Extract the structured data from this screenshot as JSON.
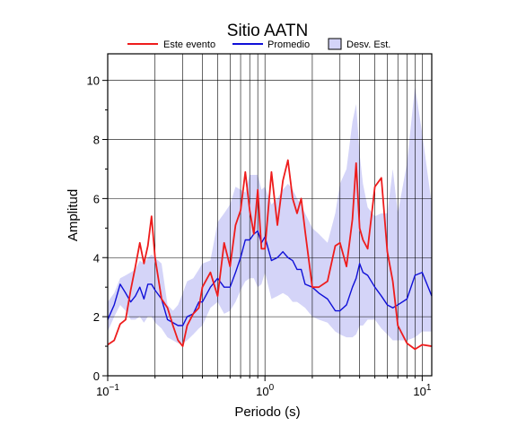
{
  "chart_data": {
    "type": "area",
    "title": "Sitio AATN",
    "xlabel": "Periodo (s)",
    "ylabel": "Amplitud",
    "x_scale": "log",
    "xlim": [
      0.1,
      11.5
    ],
    "ylim": [
      0,
      10.9
    ],
    "x_ticks": [
      0.1,
      1,
      10
    ],
    "x_tick_labels": [
      {
        "base": "10",
        "exp": "−1"
      },
      {
        "base": "10",
        "exp": "0"
      },
      {
        "base": "10",
        "exp": "1"
      }
    ],
    "y_ticks": [
      0,
      2,
      4,
      6,
      8,
      10
    ],
    "y_tick_labels": [
      "0",
      "2",
      "4",
      "6",
      "8",
      "10"
    ],
    "grid": true,
    "legend_position": "top",
    "legend": [
      {
        "label": "Este evento",
        "kind": "line",
        "color": "#ee1c1c"
      },
      {
        "label": "Promedio",
        "kind": "line",
        "color": "#1010d8"
      },
      {
        "label": "Desv. Est.",
        "kind": "box",
        "color": "#d4d4f8"
      }
    ],
    "x": [
      0.1,
      0.11,
      0.12,
      0.13,
      0.14,
      0.15,
      0.16,
      0.17,
      0.18,
      0.19,
      0.2,
      0.22,
      0.24,
      0.26,
      0.28,
      0.3,
      0.32,
      0.35,
      0.38,
      0.4,
      0.45,
      0.5,
      0.55,
      0.6,
      0.65,
      0.7,
      0.75,
      0.8,
      0.85,
      0.9,
      0.95,
      1.0,
      1.1,
      1.2,
      1.3,
      1.4,
      1.5,
      1.6,
      1.7,
      1.8,
      2.0,
      2.2,
      2.5,
      2.8,
      3.0,
      3.3,
      3.6,
      3.8,
      4.0,
      4.2,
      4.5,
      5.0,
      5.5,
      6.0,
      6.5,
      7.0,
      8.0,
      9.0,
      10.0,
      11.5
    ],
    "series": [
      {
        "name": "Este evento",
        "color": "#ee1c1c",
        "values": [
          1.05,
          1.2,
          1.75,
          1.9,
          2.9,
          3.7,
          4.5,
          3.8,
          4.4,
          5.4,
          4.0,
          2.6,
          2.3,
          1.7,
          1.2,
          1.0,
          1.7,
          2.1,
          2.3,
          3.0,
          3.5,
          2.7,
          4.5,
          3.7,
          5.1,
          5.6,
          6.9,
          5.6,
          4.8,
          6.3,
          4.3,
          4.3,
          6.9,
          5.1,
          6.6,
          7.3,
          6.0,
          5.5,
          6.0,
          4.9,
          3.0,
          3.0,
          3.2,
          4.4,
          4.5,
          3.7,
          5.3,
          7.2,
          5.0,
          4.6,
          4.3,
          6.4,
          6.7,
          4.2,
          3.2,
          1.7,
          1.1,
          0.9,
          1.05,
          1.0
        ]
      },
      {
        "name": "Promedio",
        "color": "#1010d8",
        "values": [
          1.9,
          2.4,
          3.1,
          2.8,
          2.5,
          2.7,
          3.0,
          2.6,
          3.1,
          3.1,
          2.9,
          2.6,
          1.9,
          1.8,
          1.7,
          1.7,
          2.0,
          2.1,
          2.5,
          2.5,
          3.0,
          3.3,
          3.0,
          3.0,
          3.5,
          4.0,
          4.6,
          4.6,
          4.8,
          4.9,
          4.5,
          4.7,
          3.9,
          4.0,
          4.2,
          4.0,
          3.9,
          3.6,
          3.6,
          3.1,
          3.0,
          2.8,
          2.6,
          2.2,
          2.2,
          2.4,
          3.0,
          3.3,
          3.8,
          3.5,
          3.4,
          3.0,
          2.7,
          2.4,
          2.3,
          2.4,
          2.6,
          3.4,
          3.5,
          2.7
        ]
      }
    ],
    "std_band": {
      "name": "Desv. Est.",
      "color": "#d4d4f8",
      "upper": [
        2.5,
        2.8,
        3.3,
        3.4,
        3.5,
        3.6,
        3.9,
        3.8,
        4.0,
        4.1,
        4.0,
        3.8,
        2.4,
        2.2,
        2.4,
        2.8,
        3.2,
        3.3,
        3.6,
        3.8,
        3.9,
        5.2,
        5.5,
        5.8,
        6.4,
        6.3,
        6.2,
        6.8,
        6.8,
        6.8,
        6.3,
        6.4,
        5.8,
        6.0,
        6.3,
        6.5,
        6.3,
        6.0,
        5.8,
        5.5,
        5.0,
        4.8,
        4.5,
        5.5,
        6.5,
        7.0,
        8.6,
        9.2,
        7.5,
        6.5,
        5.7,
        5.4,
        5.5,
        5.5,
        7.0,
        5.5,
        7.2,
        9.8,
        8.2,
        5.8
      ],
      "lower": [
        1.5,
        2.0,
        2.4,
        2.2,
        1.9,
        1.9,
        2.0,
        1.8,
        2.0,
        2.0,
        1.8,
        1.6,
        1.3,
        1.2,
        1.1,
        1.1,
        1.2,
        1.4,
        1.6,
        1.7,
        2.3,
        2.5,
        2.1,
        2.2,
        2.5,
        2.9,
        3.2,
        3.3,
        3.3,
        3.0,
        3.1,
        3.5,
        2.6,
        2.7,
        2.8,
        2.7,
        2.5,
        2.5,
        2.4,
        2.3,
        2.0,
        1.9,
        1.8,
        1.5,
        1.4,
        1.3,
        1.3,
        1.4,
        1.7,
        1.7,
        1.9,
        1.9,
        1.6,
        1.4,
        1.2,
        1.2,
        1.2,
        1.3,
        1.5,
        1.5
      ]
    }
  }
}
